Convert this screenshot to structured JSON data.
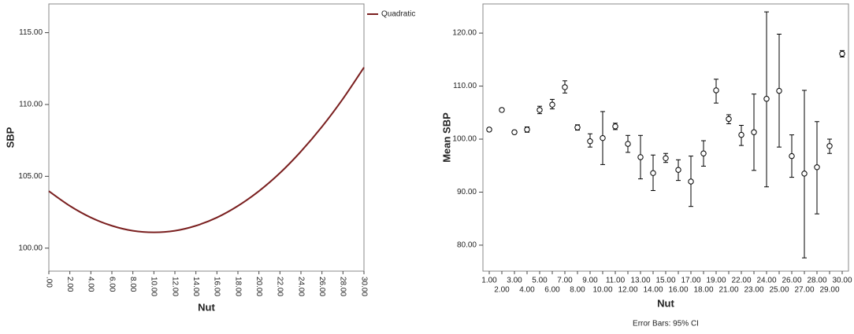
{
  "chart_data": [
    {
      "type": "line",
      "y_label": "SBP",
      "x_label": "Nut",
      "x": [
        0,
        2,
        4,
        6,
        8,
        10,
        12,
        14,
        16,
        18,
        20,
        22,
        24,
        26,
        28,
        30
      ],
      "series": [
        {
          "name": "Quadratic",
          "color": "#7a1f1f",
          "values": [
            103.97,
            102.94,
            102.13,
            101.56,
            101.21,
            101.1,
            101.21,
            101.56,
            102.13,
            102.94,
            103.97,
            105.23,
            106.73,
            108.45,
            110.4,
            112.58
          ]
        }
      ],
      "xlim": [
        0,
        30
      ],
      "xticks": [
        {
          "value": 0,
          "label": ".00"
        },
        {
          "value": 2,
          "label": "2.00"
        },
        {
          "value": 4,
          "label": "4.00"
        },
        {
          "value": 6,
          "label": "6.00"
        },
        {
          "value": 8,
          "label": "8.00"
        },
        {
          "value": 10,
          "label": "10.00"
        },
        {
          "value": 12,
          "label": "12.00"
        },
        {
          "value": 14,
          "label": "14.00"
        },
        {
          "value": 16,
          "label": "16.00"
        },
        {
          "value": 18,
          "label": "18.00"
        },
        {
          "value": 20,
          "label": "20.00"
        },
        {
          "value": 22,
          "label": "22.00"
        },
        {
          "value": 24,
          "label": "24.00"
        },
        {
          "value": 26,
          "label": "26.00"
        },
        {
          "value": 28,
          "label": "28.00"
        },
        {
          "value": 30,
          "label": "30.00"
        }
      ],
      "ylim": [
        98.4,
        117.0
      ],
      "yticks": [
        {
          "value": 100,
          "label": "100.00"
        },
        {
          "value": 105,
          "label": "105.00"
        },
        {
          "value": 110,
          "label": "110.00"
        },
        {
          "value": 115,
          "label": "115.00"
        }
      ],
      "legend": "right"
    },
    {
      "type": "errorbar",
      "y_label": "Mean SBP",
      "x_label": "Nut",
      "note": "Error Bars: 95% CI",
      "categories": [
        "1.00",
        "2.00",
        "3.00",
        "4.00",
        "5.00",
        "6.00",
        "7.00",
        "8.00",
        "9.00",
        "10.00",
        "11.00",
        "12.00",
        "13.00",
        "14.00",
        "15.00",
        "16.00",
        "17.00",
        "18.00",
        "19.00",
        "21.00",
        "22.00",
        "23.00",
        "24.00",
        "25.00",
        "26.00",
        "27.00",
        "28.00",
        "29.00",
        "30.00"
      ],
      "values": [
        101.8,
        105.5,
        101.3,
        101.8,
        105.5,
        106.5,
        109.8,
        102.2,
        99.6,
        100.2,
        102.4,
        99.1,
        96.6,
        93.6,
        96.4,
        94.2,
        92.0,
        97.3,
        109.2,
        103.8,
        100.8,
        101.3,
        107.6,
        109.1,
        96.8,
        93.5,
        94.7,
        98.7,
        116.1
      ],
      "lower": [
        101.5,
        105.2,
        101.0,
        101.3,
        104.8,
        105.7,
        108.7,
        101.7,
        98.5,
        95.2,
        101.8,
        97.5,
        92.5,
        90.3,
        95.6,
        92.2,
        87.3,
        94.9,
        106.8,
        102.9,
        98.8,
        94.1,
        91.0,
        98.5,
        92.8,
        77.6,
        85.9,
        97.3,
        115.5
      ],
      "upper": [
        102.1,
        105.8,
        101.6,
        102.3,
        106.2,
        107.5,
        111.0,
        102.7,
        101.0,
        105.2,
        103.0,
        100.7,
        100.7,
        97.0,
        97.3,
        96.1,
        96.8,
        99.7,
        111.3,
        104.6,
        102.6,
        108.5,
        124.0,
        119.8,
        100.8,
        109.2,
        103.3,
        100.0,
        116.7
      ],
      "color": "#000000",
      "ylim": [
        75.1,
        125.5
      ],
      "yticks": [
        {
          "value": 80,
          "label": "80.00"
        },
        {
          "value": 90,
          "label": "90.00"
        },
        {
          "value": 100,
          "label": "100.00"
        },
        {
          "value": 110,
          "label": "110.00"
        },
        {
          "value": 120,
          "label": "120.00"
        }
      ]
    }
  ]
}
